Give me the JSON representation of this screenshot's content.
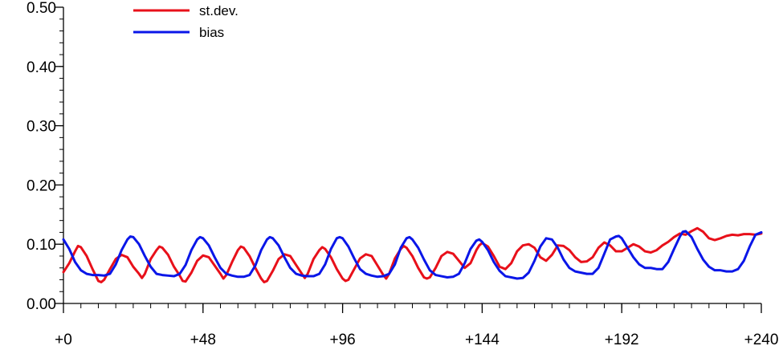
{
  "chart_data": {
    "type": "line",
    "title": "",
    "xlabel": "",
    "ylabel": "",
    "xlim": [
      0,
      240
    ],
    "ylim": [
      0.0,
      0.5
    ],
    "grid": false,
    "legend_position": "top-left",
    "x_ticks": [
      {
        "value": 0,
        "label": "+0"
      },
      {
        "value": 48,
        "label": "+48"
      },
      {
        "value": 96,
        "label": "+96"
      },
      {
        "value": 144,
        "label": "+144"
      },
      {
        "value": 192,
        "label": "+192"
      },
      {
        "value": 240,
        "label": "+240"
      }
    ],
    "y_ticks": [
      {
        "value": 0.0,
        "label": "0.00"
      },
      {
        "value": 0.1,
        "label": "0.10"
      },
      {
        "value": 0.2,
        "label": "0.20"
      },
      {
        "value": 0.3,
        "label": "0.30"
      },
      {
        "value": 0.4,
        "label": "0.40"
      },
      {
        "value": 0.5,
        "label": "0.50"
      }
    ],
    "series": [
      {
        "name": "st.dev.",
        "color": "#e8101a",
        "points": [
          [
            0,
            0.053
          ],
          [
            2,
            0.068
          ],
          [
            4,
            0.088
          ],
          [
            5,
            0.097
          ],
          [
            6,
            0.095
          ],
          [
            8,
            0.08
          ],
          [
            10,
            0.058
          ],
          [
            12,
            0.038
          ],
          [
            13,
            0.036
          ],
          [
            14,
            0.04
          ],
          [
            16,
            0.058
          ],
          [
            18,
            0.075
          ],
          [
            20,
            0.082
          ],
          [
            22,
            0.078
          ],
          [
            24,
            0.062
          ],
          [
            26,
            0.05
          ],
          [
            27,
            0.043
          ],
          [
            28,
            0.05
          ],
          [
            30,
            0.075
          ],
          [
            32,
            0.09
          ],
          [
            33,
            0.096
          ],
          [
            34,
            0.094
          ],
          [
            36,
            0.082
          ],
          [
            38,
            0.062
          ],
          [
            40,
            0.047
          ],
          [
            41,
            0.038
          ],
          [
            42,
            0.037
          ],
          [
            44,
            0.052
          ],
          [
            46,
            0.072
          ],
          [
            48,
            0.081
          ],
          [
            50,
            0.078
          ],
          [
            52,
            0.064
          ],
          [
            54,
            0.05
          ],
          [
            55,
            0.042
          ],
          [
            56,
            0.048
          ],
          [
            58,
            0.07
          ],
          [
            60,
            0.09
          ],
          [
            61,
            0.096
          ],
          [
            62,
            0.094
          ],
          [
            64,
            0.08
          ],
          [
            66,
            0.06
          ],
          [
            68,
            0.042
          ],
          [
            69,
            0.036
          ],
          [
            70,
            0.038
          ],
          [
            72,
            0.055
          ],
          [
            74,
            0.075
          ],
          [
            76,
            0.083
          ],
          [
            78,
            0.08
          ],
          [
            80,
            0.065
          ],
          [
            82,
            0.05
          ],
          [
            83,
            0.043
          ],
          [
            84,
            0.05
          ],
          [
            86,
            0.075
          ],
          [
            88,
            0.09
          ],
          [
            89,
            0.095
          ],
          [
            90,
            0.092
          ],
          [
            92,
            0.078
          ],
          [
            94,
            0.058
          ],
          [
            96,
            0.042
          ],
          [
            97,
            0.038
          ],
          [
            98,
            0.04
          ],
          [
            100,
            0.058
          ],
          [
            102,
            0.076
          ],
          [
            104,
            0.083
          ],
          [
            106,
            0.08
          ],
          [
            108,
            0.064
          ],
          [
            110,
            0.048
          ],
          [
            111,
            0.042
          ],
          [
            112,
            0.05
          ],
          [
            114,
            0.076
          ],
          [
            116,
            0.092
          ],
          [
            117,
            0.097
          ],
          [
            118,
            0.094
          ],
          [
            120,
            0.08
          ],
          [
            122,
            0.06
          ],
          [
            124,
            0.044
          ],
          [
            125,
            0.042
          ],
          [
            126,
            0.044
          ],
          [
            128,
            0.06
          ],
          [
            130,
            0.08
          ],
          [
            132,
            0.087
          ],
          [
            134,
            0.084
          ],
          [
            136,
            0.072
          ],
          [
            138,
            0.06
          ],
          [
            140,
            0.068
          ],
          [
            142,
            0.09
          ],
          [
            143,
            0.098
          ],
          [
            144,
            0.102
          ],
          [
            146,
            0.096
          ],
          [
            148,
            0.08
          ],
          [
            150,
            0.062
          ],
          [
            152,
            0.058
          ],
          [
            154,
            0.068
          ],
          [
            156,
            0.088
          ],
          [
            158,
            0.098
          ],
          [
            160,
            0.1
          ],
          [
            162,
            0.094
          ],
          [
            164,
            0.078
          ],
          [
            166,
            0.072
          ],
          [
            168,
            0.082
          ],
          [
            170,
            0.098
          ],
          [
            172,
            0.097
          ],
          [
            174,
            0.09
          ],
          [
            176,
            0.078
          ],
          [
            178,
            0.07
          ],
          [
            180,
            0.071
          ],
          [
            182,
            0.078
          ],
          [
            184,
            0.094
          ],
          [
            186,
            0.103
          ],
          [
            188,
            0.098
          ],
          [
            190,
            0.088
          ],
          [
            192,
            0.088
          ],
          [
            194,
            0.094
          ],
          [
            196,
            0.1
          ],
          [
            198,
            0.096
          ],
          [
            200,
            0.088
          ],
          [
            202,
            0.086
          ],
          [
            204,
            0.09
          ],
          [
            206,
            0.098
          ],
          [
            208,
            0.104
          ],
          [
            210,
            0.112
          ],
          [
            212,
            0.118
          ],
          [
            214,
            0.116
          ],
          [
            216,
            0.122
          ],
          [
            218,
            0.127
          ],
          [
            220,
            0.121
          ],
          [
            222,
            0.11
          ],
          [
            224,
            0.107
          ],
          [
            226,
            0.11
          ],
          [
            228,
            0.114
          ],
          [
            230,
            0.116
          ],
          [
            232,
            0.115
          ],
          [
            234,
            0.117
          ],
          [
            236,
            0.117
          ],
          [
            238,
            0.116
          ],
          [
            240,
            0.118
          ]
        ]
      },
      {
        "name": "bias",
        "color": "#0a16e8",
        "points": [
          [
            0,
            0.108
          ],
          [
            2,
            0.092
          ],
          [
            4,
            0.07
          ],
          [
            6,
            0.056
          ],
          [
            8,
            0.05
          ],
          [
            10,
            0.048
          ],
          [
            12,
            0.048
          ],
          [
            14,
            0.047
          ],
          [
            16,
            0.05
          ],
          [
            18,
            0.066
          ],
          [
            20,
            0.09
          ],
          [
            22,
            0.108
          ],
          [
            23,
            0.113
          ],
          [
            24,
            0.112
          ],
          [
            26,
            0.1
          ],
          [
            28,
            0.08
          ],
          [
            30,
            0.062
          ],
          [
            32,
            0.05
          ],
          [
            34,
            0.048
          ],
          [
            36,
            0.047
          ],
          [
            38,
            0.046
          ],
          [
            40,
            0.05
          ],
          [
            42,
            0.065
          ],
          [
            44,
            0.09
          ],
          [
            46,
            0.108
          ],
          [
            47,
            0.112
          ],
          [
            48,
            0.11
          ],
          [
            50,
            0.098
          ],
          [
            52,
            0.078
          ],
          [
            54,
            0.06
          ],
          [
            56,
            0.05
          ],
          [
            58,
            0.047
          ],
          [
            60,
            0.045
          ],
          [
            62,
            0.045
          ],
          [
            64,
            0.048
          ],
          [
            66,
            0.064
          ],
          [
            68,
            0.09
          ],
          [
            70,
            0.108
          ],
          [
            71,
            0.112
          ],
          [
            72,
            0.11
          ],
          [
            74,
            0.098
          ],
          [
            76,
            0.078
          ],
          [
            78,
            0.06
          ],
          [
            80,
            0.05
          ],
          [
            82,
            0.047
          ],
          [
            84,
            0.046
          ],
          [
            86,
            0.046
          ],
          [
            88,
            0.05
          ],
          [
            90,
            0.066
          ],
          [
            92,
            0.092
          ],
          [
            94,
            0.11
          ],
          [
            95,
            0.112
          ],
          [
            96,
            0.11
          ],
          [
            98,
            0.096
          ],
          [
            100,
            0.076
          ],
          [
            102,
            0.058
          ],
          [
            104,
            0.05
          ],
          [
            106,
            0.047
          ],
          [
            108,
            0.045
          ],
          [
            110,
            0.046
          ],
          [
            112,
            0.05
          ],
          [
            114,
            0.066
          ],
          [
            116,
            0.094
          ],
          [
            118,
            0.11
          ],
          [
            119,
            0.112
          ],
          [
            120,
            0.108
          ],
          [
            122,
            0.094
          ],
          [
            124,
            0.074
          ],
          [
            126,
            0.056
          ],
          [
            128,
            0.048
          ],
          [
            130,
            0.046
          ],
          [
            132,
            0.044
          ],
          [
            134,
            0.045
          ],
          [
            136,
            0.05
          ],
          [
            138,
            0.068
          ],
          [
            140,
            0.092
          ],
          [
            142,
            0.106
          ],
          [
            143,
            0.108
          ],
          [
            144,
            0.104
          ],
          [
            146,
            0.09
          ],
          [
            148,
            0.07
          ],
          [
            150,
            0.055
          ],
          [
            152,
            0.046
          ],
          [
            154,
            0.044
          ],
          [
            156,
            0.042
          ],
          [
            158,
            0.043
          ],
          [
            160,
            0.052
          ],
          [
            162,
            0.072
          ],
          [
            164,
            0.096
          ],
          [
            166,
            0.11
          ],
          [
            168,
            0.108
          ],
          [
            170,
            0.094
          ],
          [
            172,
            0.074
          ],
          [
            174,
            0.06
          ],
          [
            176,
            0.054
          ],
          [
            178,
            0.052
          ],
          [
            180,
            0.05
          ],
          [
            182,
            0.05
          ],
          [
            184,
            0.06
          ],
          [
            186,
            0.084
          ],
          [
            188,
            0.108
          ],
          [
            190,
            0.113
          ],
          [
            191,
            0.114
          ],
          [
            192,
            0.11
          ],
          [
            194,
            0.094
          ],
          [
            196,
            0.078
          ],
          [
            198,
            0.066
          ],
          [
            200,
            0.06
          ],
          [
            202,
            0.06
          ],
          [
            204,
            0.058
          ],
          [
            206,
            0.058
          ],
          [
            208,
            0.07
          ],
          [
            210,
            0.092
          ],
          [
            212,
            0.113
          ],
          [
            213,
            0.121
          ],
          [
            214,
            0.122
          ],
          [
            216,
            0.112
          ],
          [
            218,
            0.092
          ],
          [
            220,
            0.074
          ],
          [
            222,
            0.062
          ],
          [
            224,
            0.056
          ],
          [
            226,
            0.056
          ],
          [
            228,
            0.054
          ],
          [
            230,
            0.054
          ],
          [
            232,
            0.058
          ],
          [
            234,
            0.072
          ],
          [
            236,
            0.096
          ],
          [
            238,
            0.116
          ],
          [
            240,
            0.12
          ]
        ]
      }
    ]
  }
}
